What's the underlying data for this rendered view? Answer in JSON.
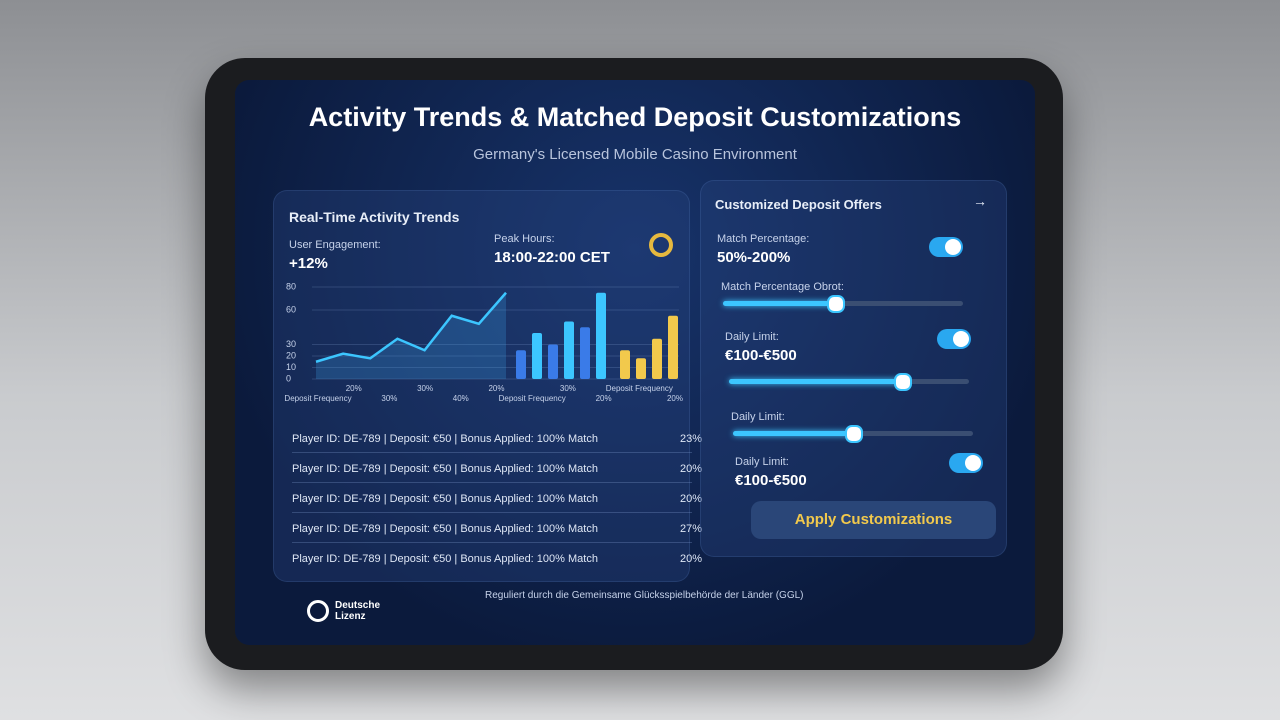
{
  "header": {
    "title": "Activity Trends & Matched Deposit Customizations",
    "subtitle": "Germany's Licensed Mobile Casino Environment"
  },
  "activity": {
    "title": "Real-Time Activity Trends",
    "engagement_label": "User Engagement:",
    "engagement_value": "+12%",
    "peak_label": "Peak Hours:",
    "peak_value": "18:00-22:00 CET",
    "chart": {
      "ylim": [
        0,
        80
      ],
      "yticks": [
        0,
        10,
        20,
        30,
        60,
        80
      ],
      "line_values": [
        15,
        22,
        18,
        35,
        25,
        55,
        48,
        75
      ],
      "blue_bars": [
        25,
        40,
        30,
        50,
        45,
        75
      ],
      "gold_bars": [
        25,
        18,
        35,
        55
      ],
      "x_labels": [
        "Deposit Frequency",
        "20%",
        "30%",
        "30%",
        "40%",
        "20%",
        "Deposit Frequency",
        "30%",
        "20%",
        "Deposit Frequency",
        "20%"
      ]
    },
    "rows": [
      [
        "Player ID: DE-789 | Deposit: €50 | Bonus Applied: 100% Match",
        "23%"
      ],
      [
        "Player ID: DE-789 | Deposit: €50 | Bonus Applied: 100% Match",
        "20%"
      ],
      [
        "Player ID: DE-789 | Deposit: €50 | Bonus Applied: 100% Match",
        "20%"
      ],
      [
        "Player ID: DE-789 | Deposit: €50 | Bonus Applied: 100% Match",
        "27%"
      ],
      [
        "Player ID: DE-789 | Deposit: €50 | Bonus Applied: 100% Match",
        "20%"
      ]
    ]
  },
  "offers": {
    "title": "Customized Deposit Offers",
    "match_label": "Match Percentage:",
    "match_value": "50%-200%",
    "slider1_label": "Match Percentage Obrot:",
    "limit1_label": "Daily Limit:",
    "limit1_value": "€100-€500",
    "slider2_label": "Daily Limit:",
    "limit2_label": "Daily Limit:",
    "limit2_value": "€100-€500",
    "button": "Apply Customizations"
  },
  "footer": {
    "logo": "Deutsche Lizenz",
    "regulator": "Reguliert durch die Gemeinsame Glücksspielbehörde der Länder (GGL)"
  }
}
